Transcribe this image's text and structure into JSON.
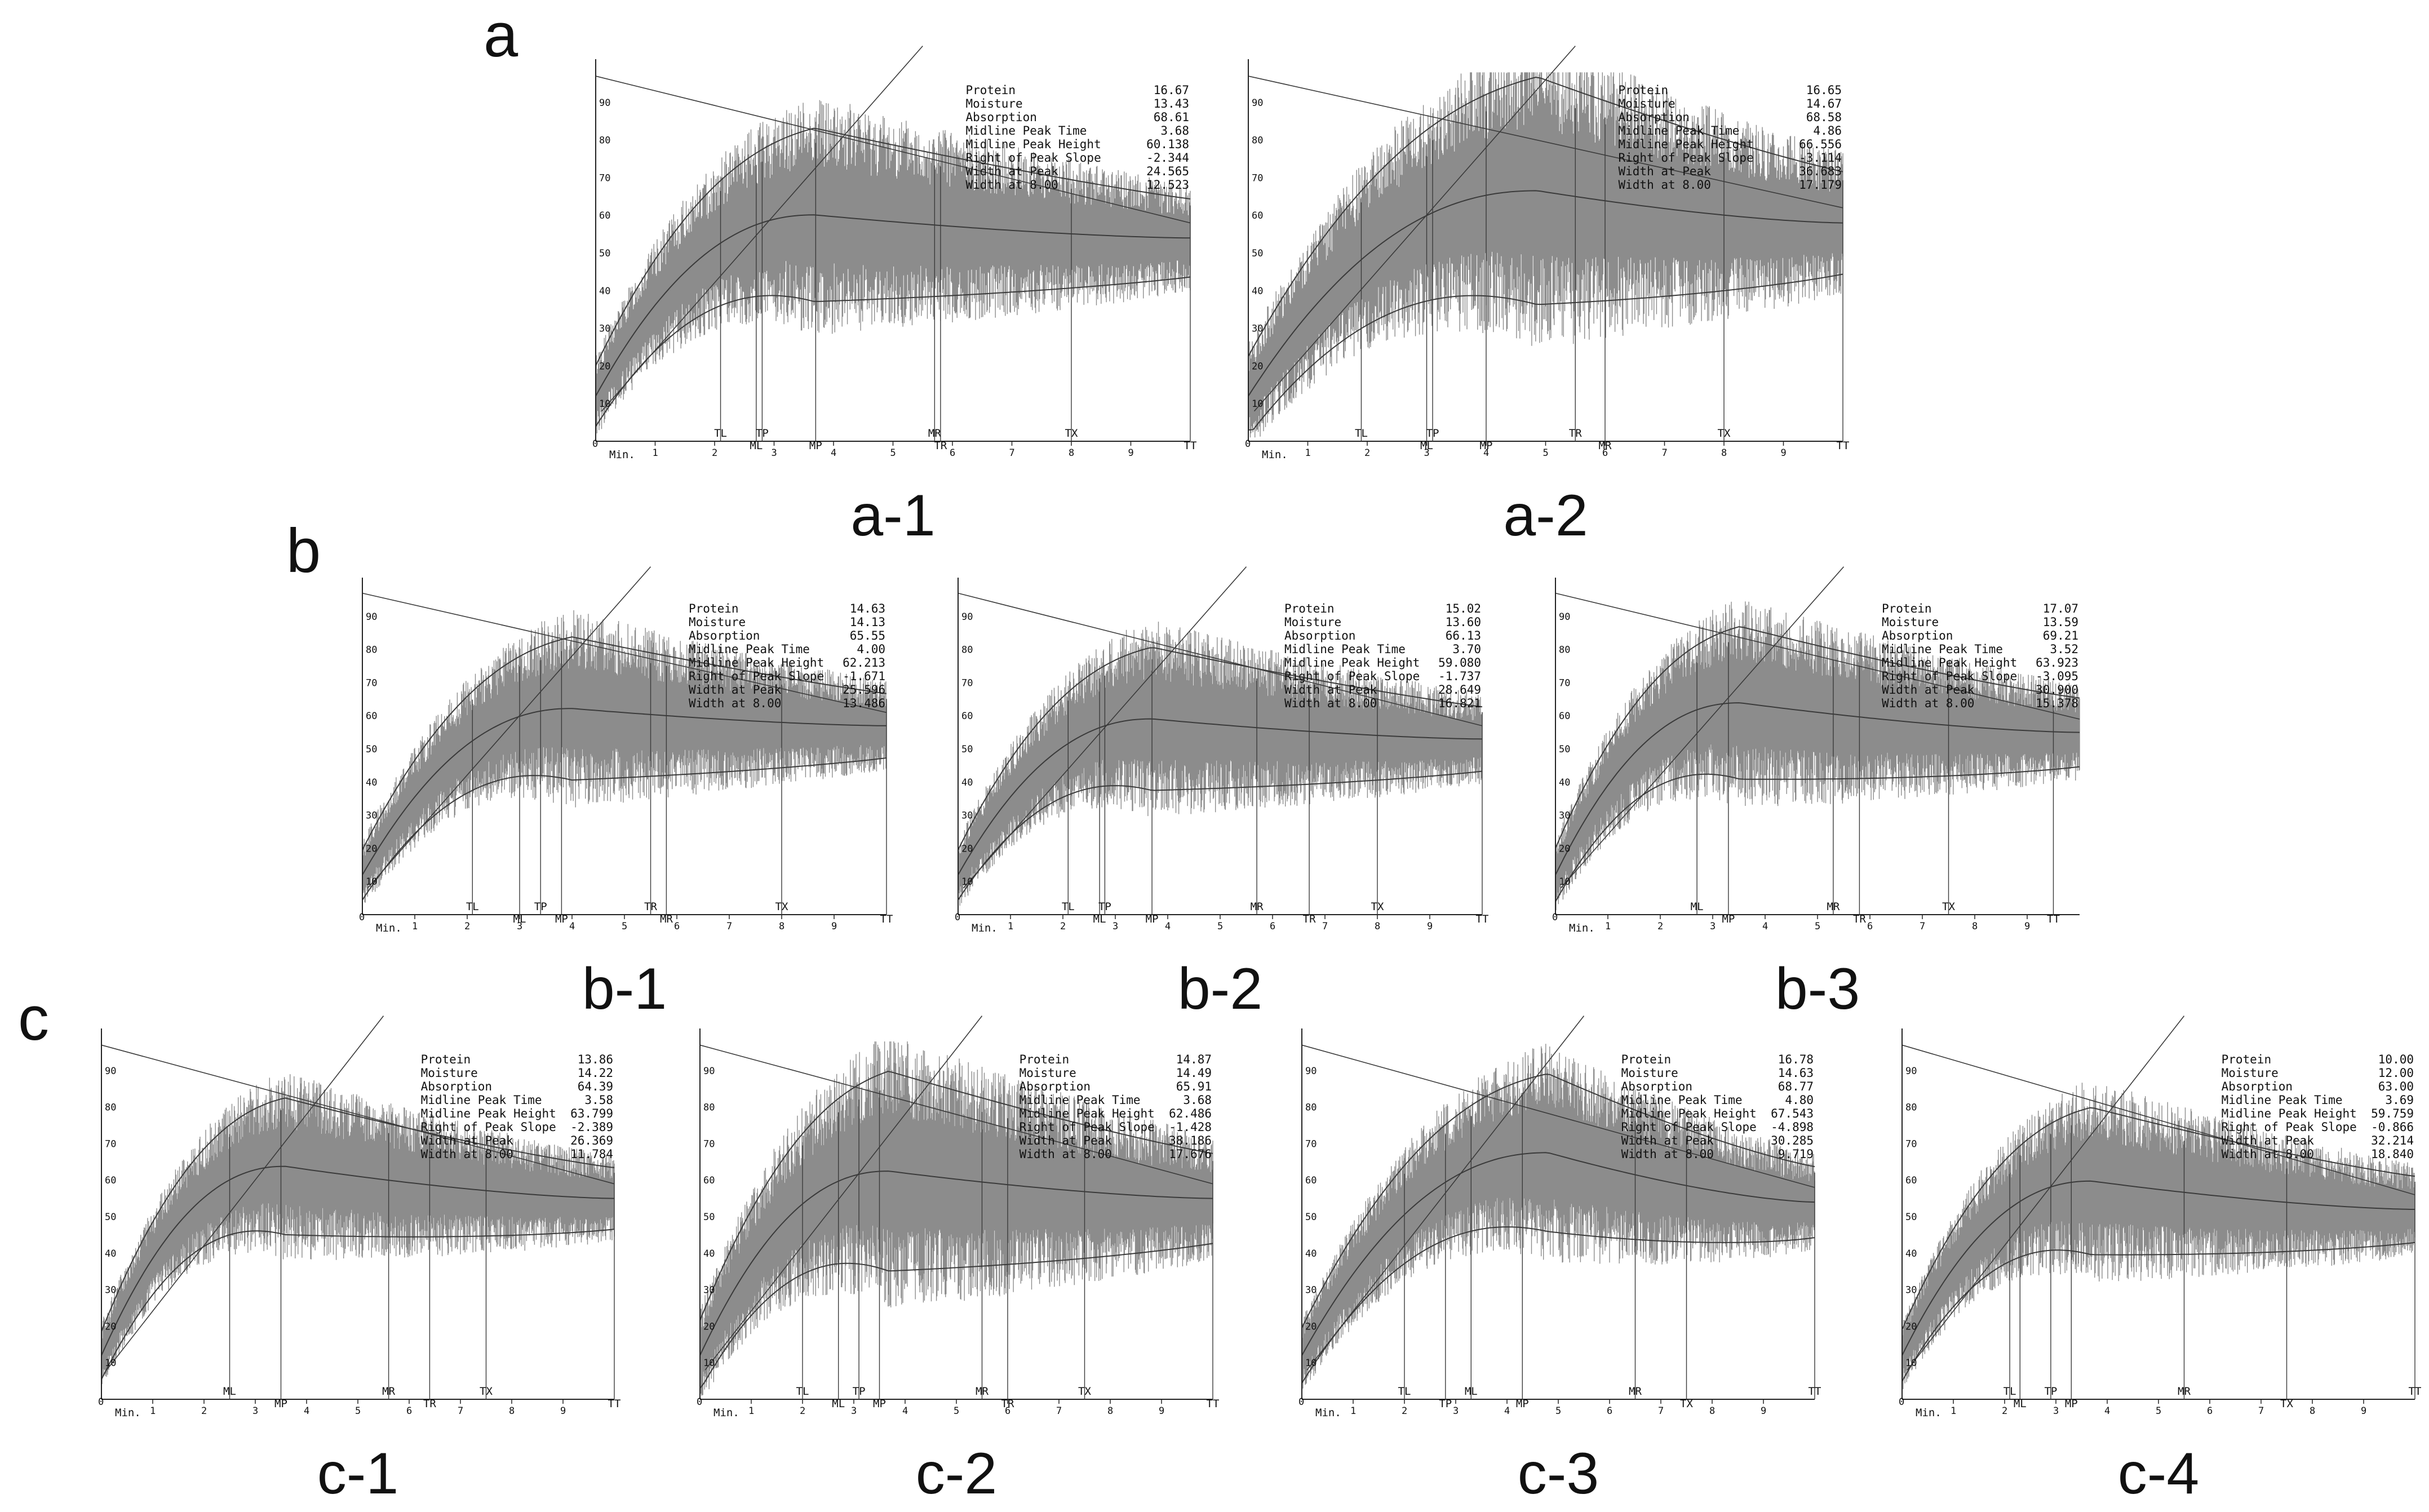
{
  "groups": [
    {
      "label": "a"
    },
    {
      "label": "b"
    },
    {
      "label": "c"
    }
  ],
  "info_labels": [
    "Protein",
    "Moisture",
    "Absorption",
    "Midline Peak Time",
    "Midline Peak Height",
    "Right of Peak Slope",
    "Width at Peak",
    "Width at  8.00"
  ],
  "axis": {
    "min_label": "Min.",
    "y_ticks": [
      10,
      20,
      30,
      40,
      50,
      60,
      70,
      80,
      90
    ],
    "x_ticks": [
      1,
      2,
      3,
      4,
      5,
      6,
      7,
      8,
      9
    ],
    "zero_label": "0"
  },
  "colors": {
    "band": "#8c8c8c",
    "line": "#3a3a3a",
    "axis": "#222222"
  },
  "chart_data": [
    {
      "id": "a-1",
      "type": "line",
      "caption": "a-1",
      "xlim": [
        0,
        10
      ],
      "ylim": [
        0,
        100
      ],
      "info": [
        "16.67",
        "13.43",
        "68.61",
        "3.68",
        "60.138",
        "-2.344",
        "24.565",
        "12.523"
      ],
      "markers": [
        {
          "label": "TL",
          "x": 2.1
        },
        {
          "label": "ML",
          "x": 2.7
        },
        {
          "label": "TP",
          "x": 2.8
        },
        {
          "label": "MP",
          "x": 3.7
        },
        {
          "label": "MR",
          "x": 5.7
        },
        {
          "label": "TR",
          "x": 5.8
        },
        {
          "label": "TX",
          "x": 8.0
        },
        {
          "label": "TT",
          "x": 10.0
        }
      ],
      "peak_time": 3.68,
      "peak_height": 60.138,
      "envelope": 32,
      "end": 54
    },
    {
      "id": "a-2",
      "type": "line",
      "caption": "a-2",
      "xlim": [
        0,
        10
      ],
      "ylim": [
        0,
        100
      ],
      "info": [
        "16.65",
        "14.67",
        "68.58",
        "4.86",
        "66.556",
        "-3.114",
        "36.683",
        "17.179"
      ],
      "markers": [
        {
          "label": "TL",
          "x": 1.9
        },
        {
          "label": "ML",
          "x": 3.0
        },
        {
          "label": "TP",
          "x": 3.1
        },
        {
          "label": "MP",
          "x": 4.0
        },
        {
          "label": "TR",
          "x": 5.5
        },
        {
          "label": "MR",
          "x": 6.0
        },
        {
          "label": "TX",
          "x": 8.0
        },
        {
          "label": "TT",
          "x": 10.0
        }
      ],
      "peak_time": 4.86,
      "peak_height": 66.556,
      "envelope": 42,
      "end": 58
    },
    {
      "id": "b-1",
      "type": "line",
      "caption": "b-1",
      "xlim": [
        0,
        10
      ],
      "ylim": [
        0,
        100
      ],
      "info": [
        "14.63",
        "14.13",
        "65.55",
        "4.00",
        "62.213",
        "-1.671",
        "25.596",
        "13.486"
      ],
      "markers": [
        {
          "label": "TL",
          "x": 2.1
        },
        {
          "label": "ML",
          "x": 3.0
        },
        {
          "label": "TP",
          "x": 3.4
        },
        {
          "label": "MP",
          "x": 3.8
        },
        {
          "label": "TR",
          "x": 5.5
        },
        {
          "label": "MR",
          "x": 5.8
        },
        {
          "label": "TX",
          "x": 8.0
        },
        {
          "label": "TT",
          "x": 10.0
        }
      ],
      "peak_time": 4.0,
      "peak_height": 62.213,
      "envelope": 30,
      "end": 57
    },
    {
      "id": "b-2",
      "type": "line",
      "caption": "b-2",
      "xlim": [
        0,
        10
      ],
      "ylim": [
        0,
        100
      ],
      "info": [
        "15.02",
        "13.60",
        "66.13",
        "3.70",
        "59.080",
        "-1.737",
        "28.649",
        "16.821"
      ],
      "markers": [
        {
          "label": "TL",
          "x": 2.1
        },
        {
          "label": "ML",
          "x": 2.7
        },
        {
          "label": "TP",
          "x": 2.8
        },
        {
          "label": "MP",
          "x": 3.7
        },
        {
          "label": "MR",
          "x": 5.7
        },
        {
          "label": "TR",
          "x": 6.7
        },
        {
          "label": "TX",
          "x": 8.0
        },
        {
          "label": "TT",
          "x": 10.0
        }
      ],
      "peak_time": 3.7,
      "peak_height": 59.08,
      "envelope": 30,
      "end": 53
    },
    {
      "id": "b-3",
      "type": "line",
      "caption": "b-3",
      "xlim": [
        0,
        10
      ],
      "ylim": [
        0,
        100
      ],
      "info": [
        "17.07",
        "13.59",
        "69.21",
        "3.52",
        "63.923",
        "-3.095",
        "30.900",
        "15.378"
      ],
      "markers": [
        {
          "label": "ML",
          "x": 2.7
        },
        {
          "label": "MP",
          "x": 3.3
        },
        {
          "label": "MR",
          "x": 5.3
        },
        {
          "label": "TR",
          "x": 5.8
        },
        {
          "label": "TX",
          "x": 7.5
        },
        {
          "label": "TT",
          "x": 9.5
        }
      ],
      "peak_time": 3.52,
      "peak_height": 63.923,
      "envelope": 32,
      "end": 55
    },
    {
      "id": "c-1",
      "type": "line",
      "caption": "c-1",
      "xlim": [
        0,
        10
      ],
      "ylim": [
        0,
        100
      ],
      "info": [
        "13.86",
        "14.22",
        "64.39",
        "3.58",
        "63.799",
        "-2.389",
        "26.369",
        "11.784"
      ],
      "markers": [
        {
          "label": "ML",
          "x": 2.5
        },
        {
          "label": "MP",
          "x": 3.5
        },
        {
          "label": "MR",
          "x": 5.6
        },
        {
          "label": "TR",
          "x": 6.4
        },
        {
          "label": "TX",
          "x": 7.5
        },
        {
          "label": "TT",
          "x": 10.0
        }
      ],
      "peak_time": 3.58,
      "peak_height": 63.799,
      "envelope": 26,
      "end": 55
    },
    {
      "id": "c-2",
      "type": "line",
      "caption": "c-2",
      "xlim": [
        0,
        10
      ],
      "ylim": [
        0,
        100
      ],
      "info": [
        "14.87",
        "14.49",
        "65.91",
        "3.68",
        "62.486",
        "-1.428",
        "38.186",
        "17.676"
      ],
      "markers": [
        {
          "label": "TL",
          "x": 2.0
        },
        {
          "label": "ML",
          "x": 2.7
        },
        {
          "label": "TP",
          "x": 3.1
        },
        {
          "label": "MP",
          "x": 3.5
        },
        {
          "label": "MR",
          "x": 5.5
        },
        {
          "label": "TR",
          "x": 6.0
        },
        {
          "label": "TX",
          "x": 7.5
        },
        {
          "label": "TT",
          "x": 10.0
        }
      ],
      "peak_time": 3.68,
      "peak_height": 62.486,
      "envelope": 38,
      "end": 55
    },
    {
      "id": "c-3",
      "type": "line",
      "caption": "c-3",
      "xlim": [
        0,
        10
      ],
      "ylim": [
        0,
        100
      ],
      "info": [
        "16.78",
        "14.63",
        "68.77",
        "4.80",
        "67.543",
        "-4.898",
        "30.285",
        "9.719"
      ],
      "markers": [
        {
          "label": "TL",
          "x": 2.0
        },
        {
          "label": "TP",
          "x": 2.8
        },
        {
          "label": "ML",
          "x": 3.3
        },
        {
          "label": "MP",
          "x": 4.3
        },
        {
          "label": "MR",
          "x": 6.5
        },
        {
          "label": "TX",
          "x": 7.5
        },
        {
          "label": "TT",
          "x": 10.0
        }
      ],
      "peak_time": 4.8,
      "peak_height": 67.543,
      "envelope": 30,
      "end": 54
    },
    {
      "id": "c-4",
      "type": "line",
      "caption": "c-4",
      "xlim": [
        0,
        10
      ],
      "ylim": [
        0,
        100
      ],
      "info": [
        "10.00",
        "12.00",
        "63.00",
        "3.69",
        "59.759",
        "-0.866",
        "32.214",
        "18.840"
      ],
      "markers": [
        {
          "label": "TL",
          "x": 2.1
        },
        {
          "label": "ML",
          "x": 2.3
        },
        {
          "label": "TP",
          "x": 2.9
        },
        {
          "label": "MP",
          "x": 3.3
        },
        {
          "label": "MR",
          "x": 5.5
        },
        {
          "label": "TX",
          "x": 7.5
        },
        {
          "label": "TT",
          "x": 10.0
        }
      ],
      "peak_time": 3.69,
      "peak_height": 59.759,
      "envelope": 28,
      "end": 52
    }
  ]
}
